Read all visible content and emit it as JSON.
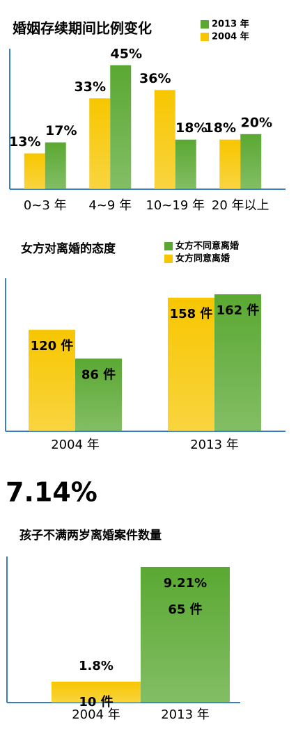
{
  "headline": "7.14%",
  "chart_data": [
    {
      "type": "bar",
      "title": "婚姻存续期间比例变化",
      "categories": [
        "0~3 年",
        "4~9 年",
        "10~19 年",
        "20 年以上"
      ],
      "series": [
        {
          "name": "2013 年",
          "color": "#5aa832",
          "values": [
            17,
            45,
            18,
            20
          ],
          "value_labels": [
            "17%",
            "45%",
            "18%",
            "20%"
          ]
        },
        {
          "name": "2004 年",
          "color": "#f7c600",
          "values": [
            13,
            33,
            36,
            18
          ],
          "value_labels": [
            "13%",
            "33%",
            "36%",
            "18%"
          ]
        }
      ],
      "ylim": [
        0,
        51
      ]
    },
    {
      "type": "bar",
      "title": "女方对离婚的态度",
      "categories": [
        "2004 年",
        "2013 年"
      ],
      "series": [
        {
          "name": "女方不同意离婚",
          "color": "#5aa832",
          "values": [
            86,
            162
          ],
          "value_labels": [
            "86 件",
            "162 件"
          ]
        },
        {
          "name": "女方同意离婚",
          "color": "#f7c600",
          "values": [
            120,
            158
          ],
          "value_labels": [
            "120 件",
            "158 件"
          ]
        }
      ],
      "ylim": [
        0,
        181
      ]
    },
    {
      "type": "single",
      "title": "孩子不满两岁离婚案件数量",
      "categories": [
        "2004 年",
        "2013 年"
      ],
      "values": [
        10,
        65
      ],
      "value_labels": [
        "10 件",
        "65 件"
      ],
      "shares": [
        1.8,
        9.21
      ],
      "share_labels": [
        "1.8%",
        "9.21%"
      ],
      "colors": [
        "#f7c600",
        "#5aa832"
      ],
      "ylim": [
        0,
        70
      ]
    }
  ]
}
